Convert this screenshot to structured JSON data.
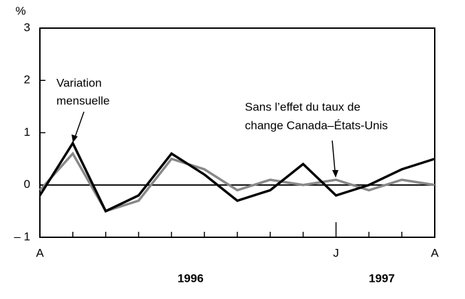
{
  "chart_data": {
    "type": "line",
    "y_unit_label": "%",
    "categories": [
      "A",
      null,
      null,
      null,
      null,
      null,
      null,
      null,
      null,
      "J",
      null,
      null,
      "A"
    ],
    "year_labels": [
      "1996",
      "1997"
    ],
    "series": [
      {
        "color": "#888888",
        "values": [
          -0.1,
          0.6,
          -0.5,
          -0.3,
          0.5,
          0.3,
          -0.1,
          0.1,
          0.0,
          0.1,
          -0.1,
          0.1,
          0.0
        ]
      },
      {
        "color": "#000000",
        "values": [
          -0.2,
          0.8,
          -0.5,
          -0.2,
          0.6,
          0.2,
          -0.3,
          -0.1,
          0.4,
          -0.2,
          0.0,
          0.3,
          0.5
        ]
      }
    ],
    "annotations": [
      {
        "lines": [
          "Variation",
          "mensuelle"
        ]
      },
      {
        "lines": [
          "Sans l’effet du taux de",
          "change Canada–États-Unis"
        ]
      }
    ],
    "ylim": [
      -1,
      3
    ],
    "yticks": [
      {
        "value": -1,
        "label": "– 1"
      },
      0,
      1,
      2,
      3
    ],
    "grid": false
  }
}
